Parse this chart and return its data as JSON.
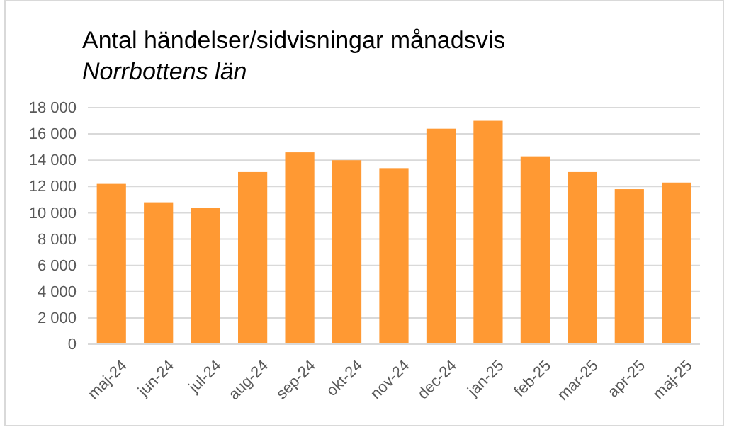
{
  "chart_data": {
    "type": "bar",
    "title": "Antal händelser/sidvisningar månadsvis",
    "subtitle": "Norrbottens län",
    "categories": [
      "maj-24",
      "jun-24",
      "jul-24",
      "aug-24",
      "sep-24",
      "okt-24",
      "nov-24",
      "dec-24",
      "jan-25",
      "feb-25",
      "mar-25",
      "apr-25",
      "maj-25"
    ],
    "values": [
      12200,
      10800,
      10400,
      13100,
      14600,
      14000,
      13400,
      16400,
      17000,
      14300,
      13100,
      11800,
      12300
    ],
    "color": "#ff9933",
    "ylim": [
      0,
      18000
    ],
    "yticks": [
      0,
      {
        "value": 2000,
        "label": "2 000"
      },
      {
        "value": 4000,
        "label": "4 000"
      },
      {
        "value": 6000,
        "label": "6 000"
      },
      {
        "value": 8000,
        "label": "8 000"
      },
      {
        "value": 10000,
        "label": "10 000"
      },
      {
        "value": 12000,
        "label": "12 000"
      },
      {
        "value": 14000,
        "label": "14 000"
      },
      {
        "value": 16000,
        "label": "16 000"
      },
      {
        "value": 18000,
        "label": "18 000"
      }
    ],
    "grid": "y"
  }
}
